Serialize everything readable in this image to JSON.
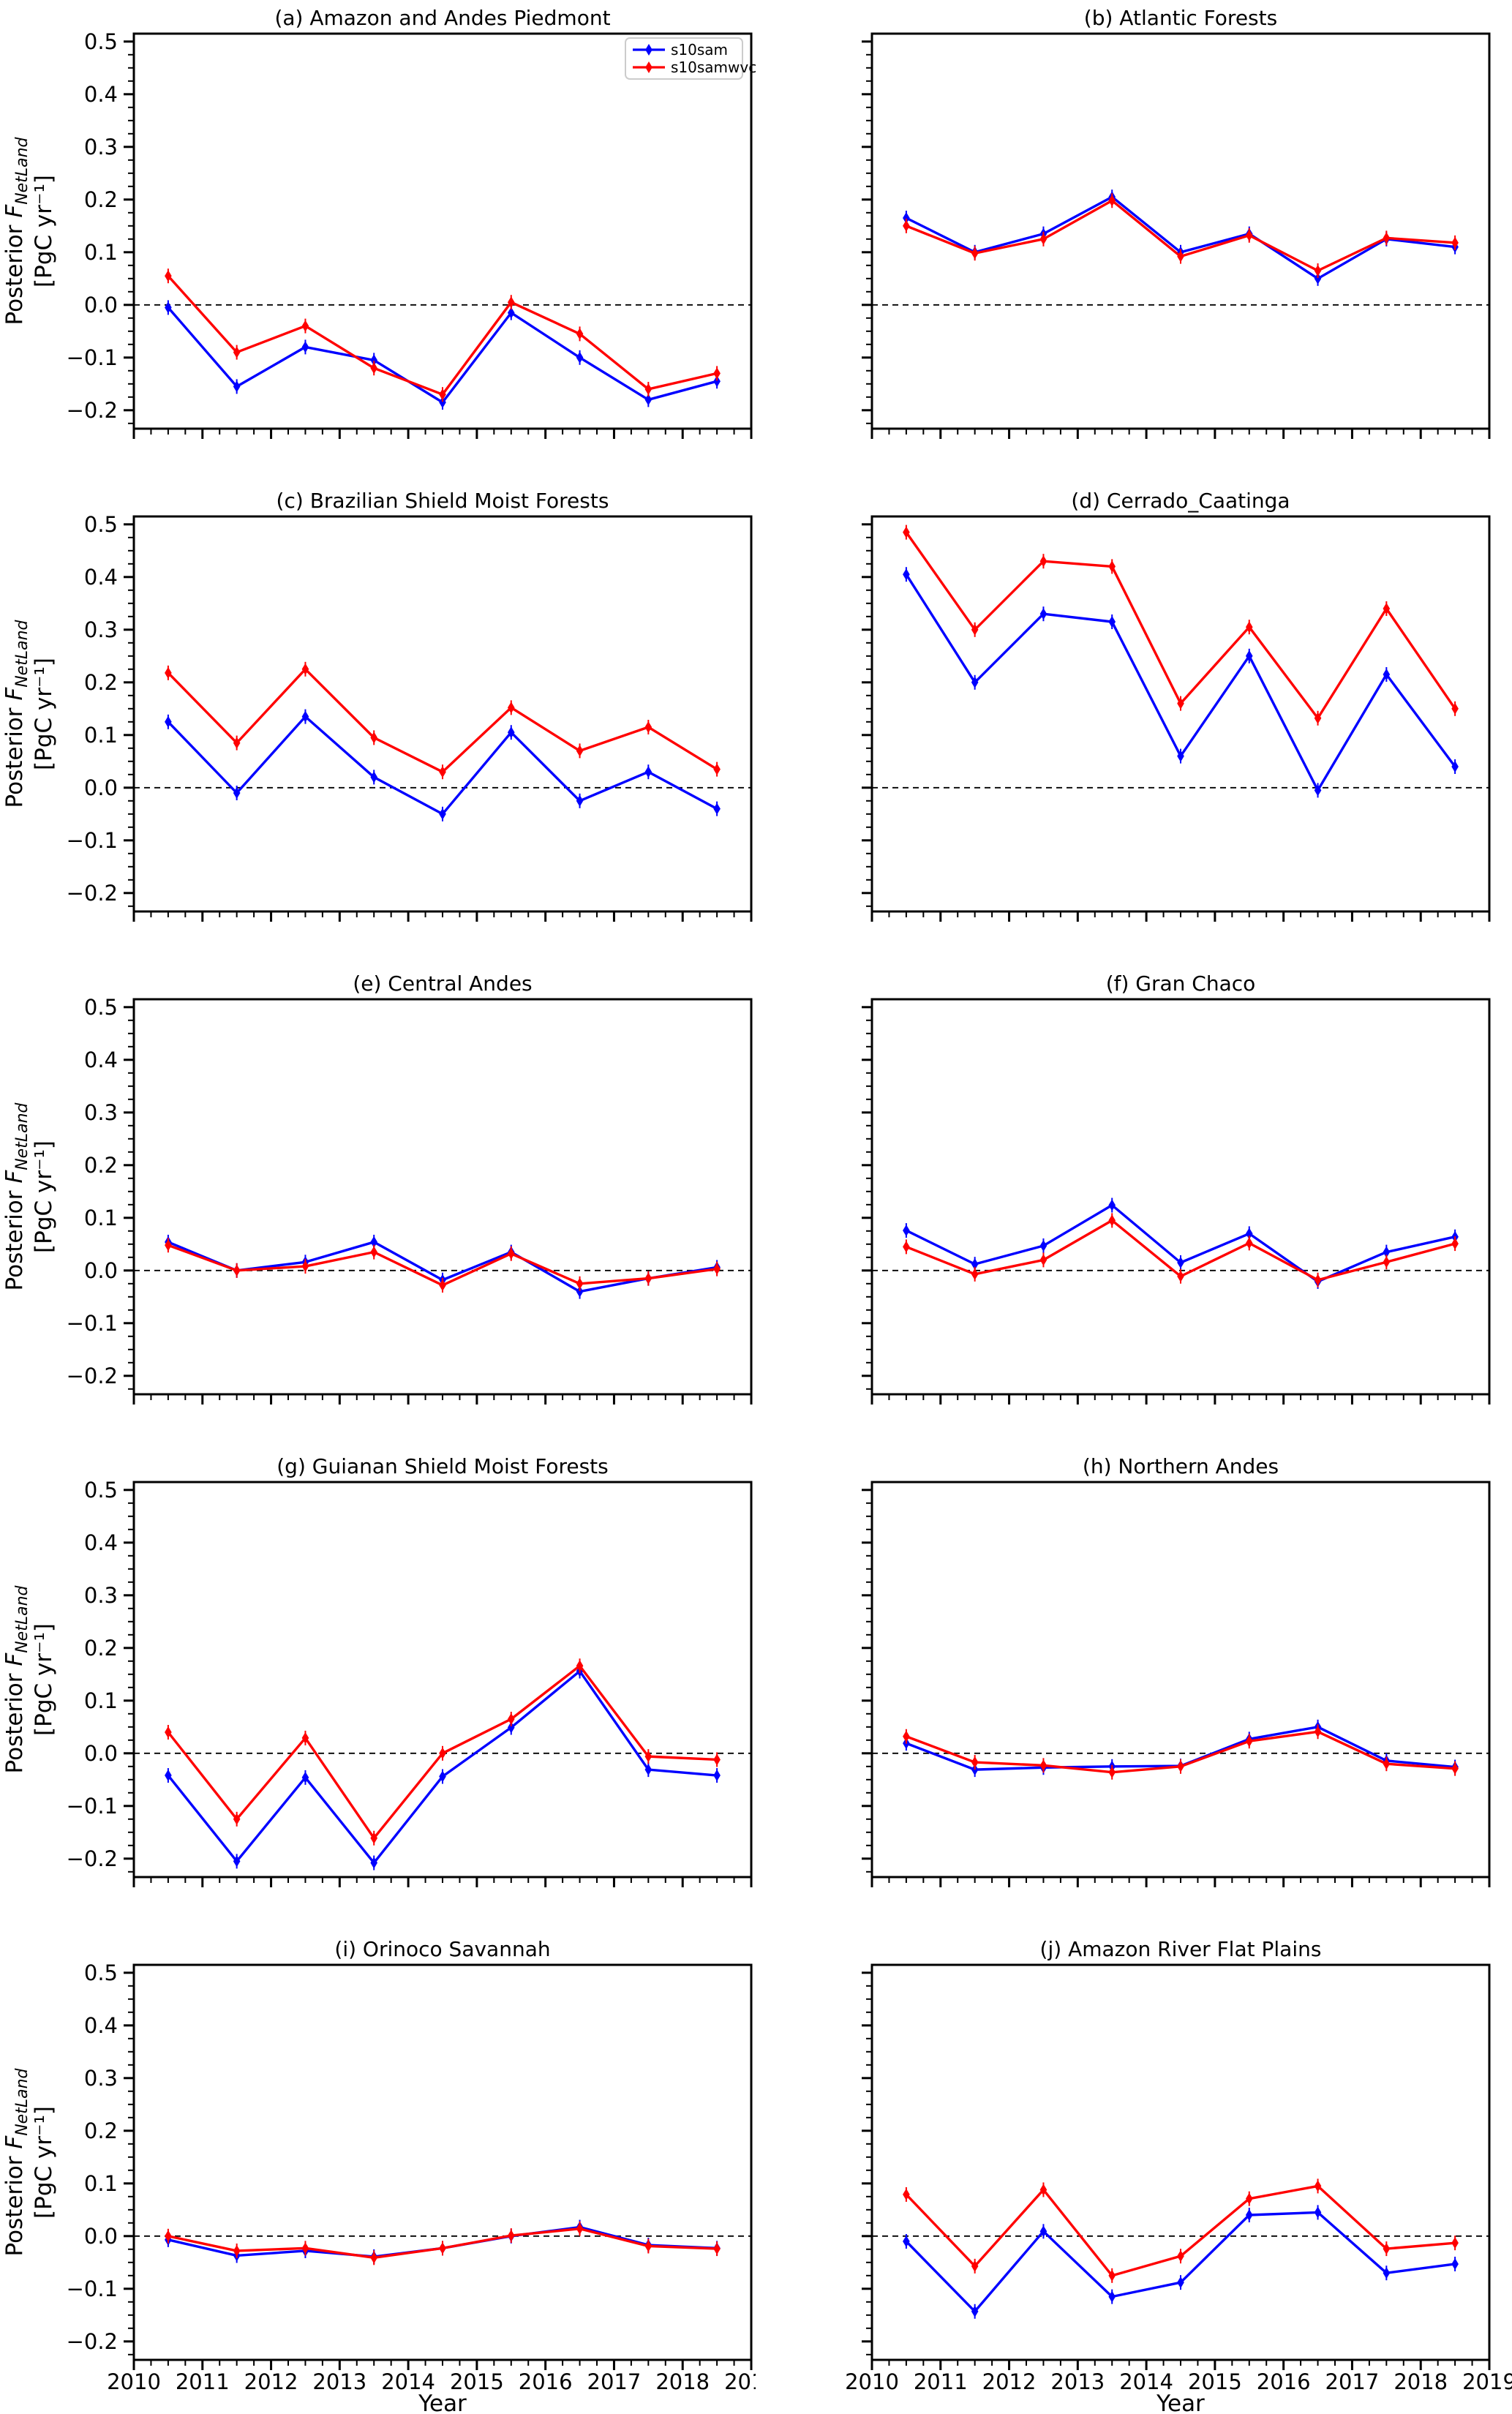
{
  "figure": {
    "background": "#ffffff",
    "x_label": "Year",
    "x_tick_labels": [
      "2010",
      "2011",
      "2012",
      "2013",
      "2014",
      "2015",
      "2016",
      "2017",
      "2018",
      "2019"
    ],
    "y_tick_labels": [
      "0.5",
      "0.4",
      "0.3",
      "0.2",
      "0.1",
      "0.0",
      "−0.1",
      "−0.2"
    ],
    "y_tick_values": [
      0.5,
      0.4,
      0.3,
      0.2,
      0.1,
      0.0,
      -0.1,
      -0.2
    ],
    "ylabel_prefix": "Posterior ",
    "ylabel_F": "F",
    "ylabel_sub": "NetLand",
    "ylabel_units": "[PgC yr⁻¹]",
    "colors": {
      "s10sam": "#0000ff",
      "s10samwvc": "#ff0000",
      "zero_line": "#000000",
      "axis": "#000000",
      "legend_frame": "#cccccc"
    },
    "legend": {
      "entries": [
        {
          "label": "s10sam",
          "color": "#0000ff"
        },
        {
          "label": "s10samwvc",
          "color": "#ff0000"
        }
      ]
    }
  },
  "chart_data": [
    {
      "type": "line",
      "id": "a",
      "title": "(a) Amazon and Andes Piedmont",
      "x": [
        2010.5,
        2011.5,
        2012.5,
        2013.5,
        2014.5,
        2015.5,
        2016.5,
        2017.5,
        2018.5
      ],
      "xlim": [
        2010,
        2019
      ],
      "ylim": [
        -0.235,
        0.515
      ],
      "zero_line": true,
      "legend": true,
      "series": [
        {
          "name": "s10sam",
          "color": "#0000ff",
          "values": [
            -0.005,
            -0.155,
            -0.08,
            -0.105,
            -0.185,
            -0.015,
            -0.1,
            -0.18,
            -0.145
          ]
        },
        {
          "name": "s10samwvc",
          "color": "#ff0000",
          "values": [
            0.055,
            -0.09,
            -0.04,
            -0.12,
            -0.17,
            0.005,
            -0.055,
            -0.16,
            -0.13
          ]
        }
      ]
    },
    {
      "type": "line",
      "id": "b",
      "title": "(b) Atlantic Forests",
      "x": [
        2010.5,
        2011.5,
        2012.5,
        2013.5,
        2014.5,
        2015.5,
        2016.5,
        2017.5,
        2018.5
      ],
      "xlim": [
        2010,
        2019
      ],
      "ylim": [
        -0.235,
        0.515
      ],
      "zero_line": true,
      "legend": false,
      "series": [
        {
          "name": "s10sam",
          "color": "#0000ff",
          "values": [
            0.165,
            0.1,
            0.135,
            0.205,
            0.1,
            0.135,
            0.05,
            0.125,
            0.11
          ]
        },
        {
          "name": "s10samwvc",
          "color": "#ff0000",
          "values": [
            0.15,
            0.098,
            0.125,
            0.198,
            0.092,
            0.132,
            0.065,
            0.127,
            0.118
          ]
        }
      ]
    },
    {
      "type": "line",
      "id": "c",
      "title": "(c) Brazilian Shield Moist Forests",
      "x": [
        2010.5,
        2011.5,
        2012.5,
        2013.5,
        2014.5,
        2015.5,
        2016.5,
        2017.5,
        2018.5
      ],
      "xlim": [
        2010,
        2019
      ],
      "ylim": [
        -0.235,
        0.515
      ],
      "zero_line": true,
      "legend": false,
      "series": [
        {
          "name": "s10sam",
          "color": "#0000ff",
          "values": [
            0.125,
            -0.01,
            0.135,
            0.02,
            -0.05,
            0.105,
            -0.025,
            0.03,
            -0.04
          ]
        },
        {
          "name": "s10samwvc",
          "color": "#ff0000",
          "values": [
            0.218,
            0.085,
            0.225,
            0.095,
            0.03,
            0.152,
            0.07,
            0.115,
            0.035
          ]
        }
      ]
    },
    {
      "type": "line",
      "id": "d",
      "title": "(d) Cerrado_Caatinga",
      "x": [
        2010.5,
        2011.5,
        2012.5,
        2013.5,
        2014.5,
        2015.5,
        2016.5,
        2017.5,
        2018.5
      ],
      "xlim": [
        2010,
        2019
      ],
      "ylim": [
        -0.235,
        0.515
      ],
      "zero_line": true,
      "legend": false,
      "series": [
        {
          "name": "s10sam",
          "color": "#0000ff",
          "values": [
            0.405,
            0.2,
            0.33,
            0.315,
            0.06,
            0.25,
            -0.005,
            0.215,
            0.04
          ]
        },
        {
          "name": "s10samwvc",
          "color": "#ff0000",
          "values": [
            0.485,
            0.3,
            0.43,
            0.42,
            0.16,
            0.305,
            0.132,
            0.34,
            0.15
          ]
        }
      ]
    },
    {
      "type": "line",
      "id": "e",
      "title": "(e) Central Andes",
      "x": [
        2010.5,
        2011.5,
        2012.5,
        2013.5,
        2014.5,
        2015.5,
        2016.5,
        2017.5,
        2018.5
      ],
      "xlim": [
        2010,
        2019
      ],
      "ylim": [
        -0.235,
        0.515
      ],
      "zero_line": true,
      "legend": false,
      "series": [
        {
          "name": "s10sam",
          "color": "#0000ff",
          "values": [
            0.054,
            0.0,
            0.016,
            0.054,
            -0.018,
            0.035,
            -0.04,
            -0.015,
            0.006
          ]
        },
        {
          "name": "s10samwvc",
          "color": "#ff0000",
          "values": [
            0.048,
            0.0,
            0.008,
            0.035,
            -0.028,
            0.032,
            -0.025,
            -0.015,
            0.003
          ]
        }
      ]
    },
    {
      "type": "line",
      "id": "f",
      "title": "(f) Gran Chaco",
      "x": [
        2010.5,
        2011.5,
        2012.5,
        2013.5,
        2014.5,
        2015.5,
        2016.5,
        2017.5,
        2018.5
      ],
      "xlim": [
        2010,
        2019
      ],
      "ylim": [
        -0.235,
        0.515
      ],
      "zero_line": true,
      "legend": false,
      "series": [
        {
          "name": "s10sam",
          "color": "#0000ff",
          "values": [
            0.076,
            0.012,
            0.047,
            0.124,
            0.015,
            0.07,
            -0.021,
            0.035,
            0.064
          ]
        },
        {
          "name": "s10samwvc",
          "color": "#ff0000",
          "values": [
            0.045,
            -0.007,
            0.02,
            0.095,
            -0.011,
            0.052,
            -0.018,
            0.016,
            0.051
          ]
        }
      ]
    },
    {
      "type": "line",
      "id": "g",
      "title": "(g) Guianan Shield Moist Forests",
      "x": [
        2010.5,
        2011.5,
        2012.5,
        2013.5,
        2014.5,
        2015.5,
        2016.5,
        2017.5,
        2018.5
      ],
      "xlim": [
        2010,
        2019
      ],
      "ylim": [
        -0.235,
        0.515
      ],
      "zero_line": true,
      "legend": false,
      "series": [
        {
          "name": "s10sam",
          "color": "#0000ff",
          "values": [
            -0.042,
            -0.205,
            -0.046,
            -0.208,
            -0.044,
            0.049,
            0.156,
            -0.031,
            -0.042
          ]
        },
        {
          "name": "s10samwvc",
          "color": "#ff0000",
          "values": [
            0.04,
            -0.125,
            0.029,
            -0.161,
            0.0,
            0.065,
            0.166,
            -0.006,
            -0.012
          ]
        }
      ]
    },
    {
      "type": "line",
      "id": "h",
      "title": "(h) Northern Andes",
      "x": [
        2010.5,
        2011.5,
        2012.5,
        2013.5,
        2014.5,
        2015.5,
        2016.5,
        2017.5,
        2018.5
      ],
      "xlim": [
        2010,
        2019
      ],
      "ylim": [
        -0.235,
        0.515
      ],
      "zero_line": true,
      "legend": false,
      "series": [
        {
          "name": "s10sam",
          "color": "#0000ff",
          "values": [
            0.019,
            -0.031,
            -0.027,
            -0.025,
            -0.024,
            0.027,
            0.05,
            -0.014,
            -0.026
          ]
        },
        {
          "name": "s10samwvc",
          "color": "#ff0000",
          "values": [
            0.032,
            -0.017,
            -0.023,
            -0.036,
            -0.025,
            0.023,
            0.041,
            -0.02,
            -0.029
          ]
        }
      ]
    },
    {
      "type": "line",
      "id": "i",
      "title": "(i) Orinoco Savannah",
      "x": [
        2010.5,
        2011.5,
        2012.5,
        2013.5,
        2014.5,
        2015.5,
        2016.5,
        2017.5,
        2018.5
      ],
      "xlim": [
        2010,
        2019
      ],
      "ylim": [
        -0.235,
        0.515
      ],
      "zero_line": true,
      "legend": false,
      "series": [
        {
          "name": "s10sam",
          "color": "#0000ff",
          "values": [
            -0.007,
            -0.037,
            -0.028,
            -0.039,
            -0.023,
            0.0,
            0.017,
            -0.017,
            -0.023
          ]
        },
        {
          "name": "s10samwvc",
          "color": "#ff0000",
          "values": [
            0.0,
            -0.028,
            -0.023,
            -0.041,
            -0.023,
            0.001,
            0.014,
            -0.019,
            -0.024
          ]
        }
      ]
    },
    {
      "type": "line",
      "id": "j",
      "title": "(j) Amazon River Flat Plains",
      "x": [
        2010.5,
        2011.5,
        2012.5,
        2013.5,
        2014.5,
        2015.5,
        2016.5,
        2017.5,
        2018.5
      ],
      "xlim": [
        2010,
        2019
      ],
      "ylim": [
        -0.235,
        0.515
      ],
      "zero_line": true,
      "legend": false,
      "series": [
        {
          "name": "s10sam",
          "color": "#0000ff",
          "values": [
            -0.01,
            -0.143,
            0.009,
            -0.115,
            -0.088,
            0.04,
            0.045,
            -0.07,
            -0.053
          ]
        },
        {
          "name": "s10samwvc",
          "color": "#ff0000",
          "values": [
            0.079,
            -0.057,
            0.088,
            -0.075,
            -0.038,
            0.071,
            0.095,
            -0.024,
            -0.013
          ]
        }
      ]
    }
  ]
}
